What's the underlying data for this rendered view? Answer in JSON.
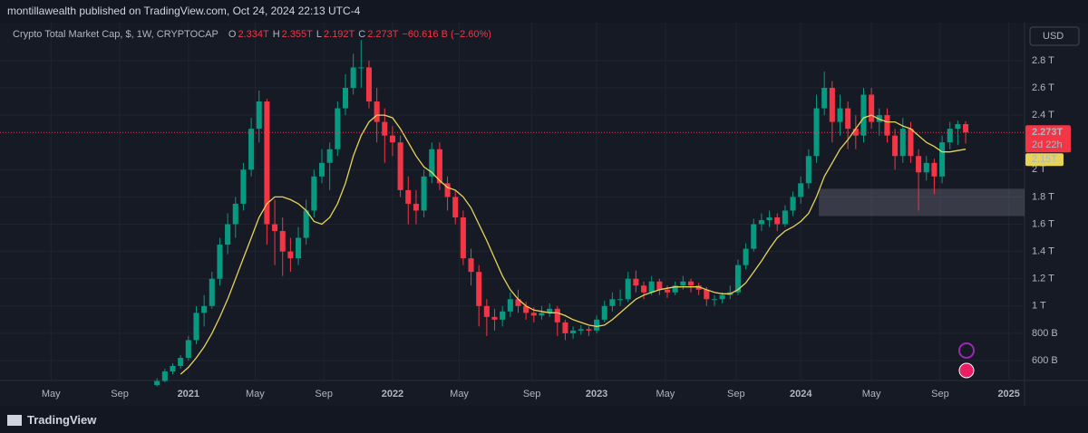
{
  "header": {
    "byline": "montillawealth published on TradingView.com, Oct 24, 2024 22:13 UTC-4"
  },
  "footer": {
    "brand": "TradingView"
  },
  "chart_data": {
    "type": "candlestick",
    "title": "Crypto Total Market Cap, $, 1W, CRYPTOCAP",
    "ohlc_legend": [
      {
        "label": "O",
        "value": "2.334T"
      },
      {
        "label": "H",
        "value": "2.355T"
      },
      {
        "label": "L",
        "value": "2.192T"
      },
      {
        "label": "C",
        "value": "2.273T"
      }
    ],
    "change": "−60.616 B (−2.60%)",
    "currency": "USD",
    "up_color": "#089981",
    "down_color": "#f23645",
    "grid": true,
    "xlim": [
      -48,
      213
    ],
    "ylim": [
      0.454,
      3.045
    ],
    "xticks": [
      {
        "value": -35,
        "label": "May"
      },
      {
        "value": -17.5,
        "label": "Sep"
      },
      {
        "value": 0,
        "label": "2021"
      },
      {
        "value": 17,
        "label": "May"
      },
      {
        "value": 34.5,
        "label": "Sep"
      },
      {
        "value": 52,
        "label": "2022"
      },
      {
        "value": 69,
        "label": "May"
      },
      {
        "value": 87.5,
        "label": "Sep"
      },
      {
        "value": 104,
        "label": "2023"
      },
      {
        "value": 121.5,
        "label": "May"
      },
      {
        "value": 139.5,
        "label": "Sep"
      },
      {
        "value": 156,
        "label": "2024"
      },
      {
        "value": 174,
        "label": "May"
      },
      {
        "value": 191.5,
        "label": "Sep"
      },
      {
        "value": 209,
        "label": "2025"
      }
    ],
    "yticks": [
      {
        "value": 0.6,
        "label": "600 B"
      },
      {
        "value": 0.8,
        "label": "800 B"
      },
      {
        "value": 1,
        "label": "1 T"
      },
      {
        "value": 1.2,
        "label": "1.2 T"
      },
      {
        "value": 1.4,
        "label": "1.4 T"
      },
      {
        "value": 1.6,
        "label": "1.6 T"
      },
      {
        "value": 1.8,
        "label": "1.8 T"
      },
      {
        "value": 2,
        "label": "2 T"
      },
      {
        "value": 2.4,
        "label": "2.4 T"
      },
      {
        "value": 2.6,
        "label": "2.6 T"
      },
      {
        "value": 2.8,
        "label": "2.8 T"
      }
    ],
    "x": [
      -8,
      -6,
      -4,
      -2,
      0,
      2,
      4,
      6,
      8,
      10,
      12,
      14,
      16,
      18,
      20,
      22,
      24,
      26,
      28,
      30,
      32,
      34,
      36,
      38,
      40,
      42,
      44,
      46,
      48,
      50,
      52,
      54,
      56,
      58,
      60,
      62,
      64,
      66,
      68,
      70,
      72,
      74,
      76,
      78,
      80,
      82,
      84,
      86,
      88,
      90,
      92,
      94,
      96,
      98,
      100,
      102,
      104,
      106,
      108,
      110,
      112,
      114,
      116,
      118,
      120,
      122,
      124,
      126,
      128,
      130,
      132,
      134,
      136,
      138,
      140,
      142,
      144,
      146,
      148,
      150,
      152,
      154,
      156,
      158,
      160,
      162,
      164,
      166,
      168,
      170,
      172,
      174,
      176,
      178,
      180,
      182,
      184,
      186,
      188,
      190,
      192,
      194,
      196,
      198
    ],
    "ohlc": [
      [
        0.42,
        0.47,
        0.41,
        0.45
      ],
      [
        0.45,
        0.54,
        0.44,
        0.52
      ],
      [
        0.52,
        0.58,
        0.5,
        0.56
      ],
      [
        0.56,
        0.64,
        0.54,
        0.62
      ],
      [
        0.62,
        0.78,
        0.6,
        0.75
      ],
      [
        0.75,
        1.0,
        0.72,
        0.95
      ],
      [
        0.95,
        1.08,
        0.85,
        1.0
      ],
      [
        1.0,
        1.25,
        0.98,
        1.2
      ],
      [
        1.2,
        1.5,
        1.15,
        1.45
      ],
      [
        1.45,
        1.68,
        1.38,
        1.6
      ],
      [
        1.6,
        1.8,
        1.5,
        1.75
      ],
      [
        1.75,
        2.05,
        1.7,
        2.0
      ],
      [
        2.0,
        2.38,
        1.95,
        2.3
      ],
      [
        2.3,
        2.58,
        2.2,
        2.5
      ],
      [
        2.5,
        2.52,
        1.45,
        1.6
      ],
      [
        1.6,
        1.78,
        1.3,
        1.55
      ],
      [
        1.55,
        1.65,
        1.22,
        1.4
      ],
      [
        1.4,
        1.5,
        1.25,
        1.35
      ],
      [
        1.35,
        1.58,
        1.3,
        1.5
      ],
      [
        1.5,
        1.78,
        1.45,
        1.7
      ],
      [
        1.7,
        2.0,
        1.65,
        1.95
      ],
      [
        1.95,
        2.15,
        1.9,
        2.05
      ],
      [
        2.05,
        2.2,
        1.85,
        2.15
      ],
      [
        2.15,
        2.5,
        2.1,
        2.45
      ],
      [
        2.45,
        2.7,
        2.4,
        2.6
      ],
      [
        2.6,
        2.85,
        2.55,
        2.75
      ],
      [
        2.75,
        2.95,
        2.6,
        2.75
      ],
      [
        2.75,
        2.8,
        2.45,
        2.5
      ],
      [
        2.5,
        2.6,
        2.2,
        2.35
      ],
      [
        2.35,
        2.45,
        2.05,
        2.25
      ],
      [
        2.25,
        2.32,
        2.1,
        2.2
      ],
      [
        2.2,
        2.25,
        1.8,
        1.85
      ],
      [
        1.85,
        1.95,
        1.6,
        1.75
      ],
      [
        1.75,
        1.85,
        1.6,
        1.7
      ],
      [
        1.7,
        2.0,
        1.65,
        1.95
      ],
      [
        1.95,
        2.2,
        1.9,
        2.15
      ],
      [
        2.15,
        2.2,
        1.85,
        1.9
      ],
      [
        1.9,
        1.95,
        1.7,
        1.8
      ],
      [
        1.8,
        1.85,
        1.6,
        1.65
      ],
      [
        1.65,
        1.7,
        1.3,
        1.35
      ],
      [
        1.35,
        1.42,
        1.15,
        1.25
      ],
      [
        1.25,
        1.3,
        0.85,
        1.0
      ],
      [
        1.0,
        1.05,
        0.78,
        0.92
      ],
      [
        0.92,
        0.98,
        0.82,
        0.9
      ],
      [
        0.9,
        1.0,
        0.85,
        0.96
      ],
      [
        0.96,
        1.1,
        0.92,
        1.05
      ],
      [
        1.05,
        1.12,
        0.95,
        1.0
      ],
      [
        1.0,
        1.03,
        0.9,
        0.95
      ],
      [
        0.95,
        0.99,
        0.88,
        0.93
      ],
      [
        0.93,
        1.0,
        0.9,
        0.95
      ],
      [
        0.95,
        1.02,
        0.92,
        0.98
      ],
      [
        0.98,
        1.0,
        0.78,
        0.88
      ],
      [
        0.88,
        0.9,
        0.75,
        0.8
      ],
      [
        0.8,
        0.85,
        0.76,
        0.82
      ],
      [
        0.82,
        0.86,
        0.79,
        0.83
      ],
      [
        0.83,
        0.85,
        0.78,
        0.82
      ],
      [
        0.82,
        0.93,
        0.8,
        0.9
      ],
      [
        0.9,
        1.04,
        0.88,
        1.0
      ],
      [
        1.0,
        1.1,
        0.96,
        1.05
      ],
      [
        1.05,
        1.12,
        1.0,
        1.05
      ],
      [
        1.05,
        1.25,
        1.03,
        1.2
      ],
      [
        1.2,
        1.26,
        1.1,
        1.15
      ],
      [
        1.15,
        1.18,
        1.05,
        1.1
      ],
      [
        1.1,
        1.22,
        1.08,
        1.18
      ],
      [
        1.18,
        1.2,
        1.08,
        1.12
      ],
      [
        1.12,
        1.15,
        1.06,
        1.1
      ],
      [
        1.1,
        1.18,
        1.08,
        1.15
      ],
      [
        1.15,
        1.22,
        1.12,
        1.18
      ],
      [
        1.18,
        1.2,
        1.1,
        1.15
      ],
      [
        1.15,
        1.17,
        1.08,
        1.12
      ],
      [
        1.12,
        1.14,
        1.0,
        1.05
      ],
      [
        1.05,
        1.08,
        1.0,
        1.05
      ],
      [
        1.05,
        1.1,
        1.02,
        1.08
      ],
      [
        1.08,
        1.15,
        1.05,
        1.1
      ],
      [
        1.1,
        1.34,
        1.08,
        1.3
      ],
      [
        1.3,
        1.46,
        1.27,
        1.42
      ],
      [
        1.42,
        1.64,
        1.4,
        1.6
      ],
      [
        1.6,
        1.68,
        1.55,
        1.63
      ],
      [
        1.63,
        1.7,
        1.58,
        1.65
      ],
      [
        1.65,
        1.68,
        1.55,
        1.6
      ],
      [
        1.6,
        1.74,
        1.58,
        1.7
      ],
      [
        1.7,
        1.84,
        1.66,
        1.8
      ],
      [
        1.8,
        1.95,
        1.75,
        1.9
      ],
      [
        1.9,
        2.15,
        1.86,
        2.1
      ],
      [
        2.1,
        2.55,
        2.05,
        2.45
      ],
      [
        2.45,
        2.72,
        2.4,
        2.6
      ],
      [
        2.6,
        2.65,
        2.2,
        2.35
      ],
      [
        2.35,
        2.55,
        2.25,
        2.45
      ],
      [
        2.45,
        2.5,
        2.15,
        2.3
      ],
      [
        2.3,
        2.4,
        2.15,
        2.25
      ],
      [
        2.25,
        2.6,
        2.2,
        2.55
      ],
      [
        2.55,
        2.6,
        2.3,
        2.35
      ],
      [
        2.35,
        2.45,
        2.25,
        2.4
      ],
      [
        2.4,
        2.45,
        2.2,
        2.25
      ],
      [
        2.25,
        2.3,
        2.0,
        2.1
      ],
      [
        2.1,
        2.38,
        2.05,
        2.3
      ],
      [
        2.3,
        2.35,
        2.05,
        2.1
      ],
      [
        2.1,
        2.15,
        1.7,
        1.98
      ],
      [
        1.98,
        2.1,
        1.92,
        2.05
      ],
      [
        2.05,
        2.08,
        1.82,
        1.95
      ],
      [
        1.95,
        2.25,
        1.9,
        2.2
      ],
      [
        2.2,
        2.35,
        2.15,
        2.3
      ],
      [
        2.3,
        2.36,
        2.18,
        2.334
      ],
      [
        2.334,
        2.355,
        2.192,
        2.273
      ]
    ],
    "ma": {
      "color": "#e6d45a",
      "values": [
        null,
        null,
        null,
        0.5,
        0.55,
        0.62,
        0.7,
        0.8,
        0.92,
        1.05,
        1.2,
        1.35,
        1.5,
        1.65,
        1.75,
        1.8,
        1.8,
        1.78,
        1.75,
        1.7,
        1.62,
        1.6,
        1.65,
        1.75,
        1.9,
        2.1,
        2.25,
        2.35,
        2.4,
        2.4,
        2.38,
        2.3,
        2.2,
        2.1,
        2.02,
        1.98,
        1.92,
        1.87,
        1.85,
        1.8,
        1.72,
        1.6,
        1.48,
        1.35,
        1.22,
        1.12,
        1.05,
        1.0,
        0.97,
        0.96,
        0.95,
        0.95,
        0.93,
        0.9,
        0.88,
        0.86,
        0.85,
        0.86,
        0.9,
        0.95,
        1.0,
        1.05,
        1.08,
        1.1,
        1.12,
        1.13,
        1.14,
        1.14,
        1.14,
        1.14,
        1.12,
        1.1,
        1.09,
        1.09,
        1.12,
        1.17,
        1.25,
        1.33,
        1.42,
        1.5,
        1.55,
        1.58,
        1.62,
        1.68,
        1.8,
        1.95,
        2.05,
        2.15,
        2.22,
        2.3,
        2.38,
        2.4,
        2.37,
        2.35,
        2.35,
        2.32,
        2.3,
        2.25,
        2.2,
        2.17,
        2.13,
        2.13,
        2.14,
        2.15
      ]
    },
    "zone": {
      "x_from": 160.6,
      "low": 1.66,
      "high": 1.86
    },
    "last_price": {
      "value": 2.273,
      "label": "2.273T",
      "countdown": "2d 22h"
    },
    "ma_price": {
      "value": 2.15,
      "label": "2.15T"
    }
  }
}
